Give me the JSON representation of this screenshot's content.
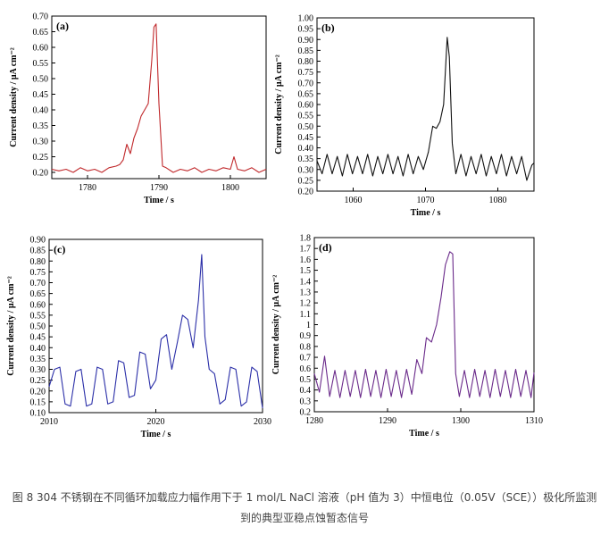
{
  "caption": "图 8 304 不锈钢在不同循环加载应力幅作用下于 1 mol/L NaCl 溶液（pH 值为 3）中恒电位（0.05V（SCE））极化所监测到的典型亚稳点蚀暂态信号",
  "chart_data": [
    {
      "type": "line",
      "panel_label": "(a)",
      "xlabel": "Time / s",
      "ylabel": "Current density / μA cm⁻²",
      "xlim": [
        1775,
        1805
      ],
      "ylim": [
        0.18,
        0.7
      ],
      "xticks": [
        1780,
        1790,
        1800
      ],
      "yticks": [
        0.2,
        0.25,
        0.3,
        0.35,
        0.4,
        0.45,
        0.5,
        0.55,
        0.6,
        0.65,
        0.7
      ],
      "ytick_labels": [
        "0.20",
        "0.25",
        "0.30",
        "0.35",
        "0.40",
        "0.45",
        "0.50",
        "0.55",
        "0.60",
        "0.65",
        "0.70"
      ],
      "color": "#c0282b",
      "grid": false,
      "series": [
        {
          "x": [
            1775,
            1776,
            1777,
            1778,
            1779,
            1780,
            1781,
            1782,
            1783,
            1784,
            1784.5,
            1785,
            1785.5,
            1786,
            1786.5,
            1787,
            1787.5,
            1788,
            1788.5,
            1789,
            1789.3,
            1789.6,
            1790,
            1790.5,
            1791,
            1792,
            1793,
            1794,
            1795,
            1796,
            1797,
            1798,
            1799,
            1800,
            1800.5,
            1801,
            1802,
            1803,
            1804,
            1805
          ],
          "y": [
            0.21,
            0.205,
            0.21,
            0.2,
            0.215,
            0.205,
            0.21,
            0.2,
            0.215,
            0.22,
            0.225,
            0.24,
            0.29,
            0.26,
            0.31,
            0.34,
            0.38,
            0.4,
            0.42,
            0.56,
            0.665,
            0.675,
            0.42,
            0.22,
            0.215,
            0.2,
            0.21,
            0.205,
            0.215,
            0.2,
            0.21,
            0.205,
            0.215,
            0.21,
            0.25,
            0.21,
            0.205,
            0.215,
            0.2,
            0.21
          ]
        }
      ]
    },
    {
      "type": "line",
      "panel_label": "(b)",
      "xlabel": "Time / s",
      "ylabel": "Current density / μA cm⁻²",
      "xlim": [
        1055,
        1085
      ],
      "ylim": [
        0.2,
        1.0
      ],
      "xticks": [
        1060,
        1070,
        1080
      ],
      "yticks": [
        0.2,
        0.25,
        0.3,
        0.35,
        0.4,
        0.45,
        0.5,
        0.55,
        0.6,
        0.65,
        0.7,
        0.75,
        0.8,
        0.85,
        0.9,
        0.95,
        1.0
      ],
      "ytick_labels": [
        "0.20",
        "0.25",
        "0.30",
        "0.35",
        "0.40",
        "0.45",
        "0.50",
        "0.55",
        "0.60",
        "0.65",
        "0.70",
        "0.75",
        "0.80",
        "0.85",
        "0.90",
        "0.95",
        "1.00"
      ],
      "color": "#111111",
      "grid": false,
      "series": [
        {
          "x": [
            1055,
            1055.7,
            1056.4,
            1057.1,
            1057.8,
            1058.5,
            1059.2,
            1059.9,
            1060.6,
            1061.3,
            1062,
            1062.7,
            1063.4,
            1064.1,
            1064.8,
            1065.5,
            1066.2,
            1066.9,
            1067.6,
            1068.3,
            1069,
            1069.7,
            1070.4,
            1071,
            1071.5,
            1072,
            1072.5,
            1073,
            1073.3,
            1073.7,
            1074.2,
            1074.9,
            1075.6,
            1076.3,
            1077,
            1077.7,
            1078.4,
            1079.1,
            1079.8,
            1080.5,
            1081.2,
            1081.9,
            1082.6,
            1083.3,
            1084,
            1084.7,
            1085
          ],
          "y": [
            0.34,
            0.28,
            0.37,
            0.28,
            0.36,
            0.27,
            0.37,
            0.28,
            0.36,
            0.28,
            0.37,
            0.27,
            0.36,
            0.28,
            0.37,
            0.28,
            0.36,
            0.27,
            0.37,
            0.28,
            0.36,
            0.3,
            0.38,
            0.5,
            0.49,
            0.52,
            0.6,
            0.91,
            0.82,
            0.42,
            0.28,
            0.37,
            0.27,
            0.36,
            0.28,
            0.37,
            0.27,
            0.36,
            0.28,
            0.37,
            0.27,
            0.36,
            0.28,
            0.36,
            0.25,
            0.32,
            0.33
          ]
        }
      ]
    },
    {
      "type": "line",
      "panel_label": "(c)",
      "xlabel": "Time / s",
      "ylabel": "Current density / μA cm⁻²",
      "xlim": [
        2010,
        2030
      ],
      "ylim": [
        0.1,
        0.9
      ],
      "xticks": [
        2010,
        2020,
        2030
      ],
      "yticks": [
        0.1,
        0.15,
        0.2,
        0.25,
        0.3,
        0.35,
        0.4,
        0.45,
        0.5,
        0.55,
        0.6,
        0.65,
        0.7,
        0.75,
        0.8,
        0.85,
        0.9
      ],
      "ytick_labels": [
        "0.10",
        "0.15",
        "0.20",
        "0.25",
        "0.30",
        "0.35",
        "0.40",
        "0.45",
        "0.50",
        "0.55",
        "0.60",
        "0.65",
        "0.70",
        "0.75",
        "0.80",
        "0.85",
        "0.90"
      ],
      "color": "#2b2fa8",
      "grid": false,
      "series": [
        {
          "x": [
            2010,
            2010.5,
            2011,
            2011.5,
            2012,
            2012.5,
            2013,
            2013.5,
            2014,
            2014.5,
            2015,
            2015.5,
            2016,
            2016.5,
            2017,
            2017.5,
            2018,
            2018.5,
            2019,
            2019.5,
            2020,
            2020.5,
            2021,
            2021.5,
            2022,
            2022.5,
            2023,
            2023.5,
            2024,
            2024.3,
            2024.6,
            2025,
            2025.5,
            2026,
            2026.5,
            2027,
            2027.5,
            2028,
            2028.5,
            2029,
            2029.5,
            2030
          ],
          "y": [
            0.22,
            0.3,
            0.31,
            0.14,
            0.13,
            0.29,
            0.3,
            0.13,
            0.14,
            0.31,
            0.3,
            0.14,
            0.15,
            0.34,
            0.33,
            0.17,
            0.18,
            0.38,
            0.37,
            0.21,
            0.25,
            0.44,
            0.46,
            0.3,
            0.42,
            0.55,
            0.53,
            0.4,
            0.62,
            0.83,
            0.45,
            0.3,
            0.28,
            0.14,
            0.16,
            0.31,
            0.3,
            0.13,
            0.15,
            0.31,
            0.29,
            0.12
          ]
        }
      ]
    },
    {
      "type": "line",
      "panel_label": "(d)",
      "xlabel": "Time / s",
      "ylabel": "Current density / μA cm⁻²",
      "xlim": [
        1280,
        1310
      ],
      "ylim": [
        0.2,
        1.8
      ],
      "xticks": [
        1280,
        1290,
        1300,
        1310
      ],
      "yticks": [
        0.2,
        0.3,
        0.4,
        0.5,
        0.6,
        0.7,
        0.8,
        0.9,
        1.0,
        1.1,
        1.2,
        1.3,
        1.4,
        1.5,
        1.6,
        1.7,
        1.8
      ],
      "ytick_labels": [
        "0.2",
        "0.3",
        "0.4",
        "0.5",
        "0.6",
        "0.7",
        "0.8",
        "0.9",
        "1",
        "1.1",
        "1.2",
        "1.3",
        "1.4",
        "1.5",
        "1.6",
        "1.7",
        "1.8"
      ],
      "color": "#6a2a8a",
      "grid": false,
      "series": [
        {
          "x": [
            1280,
            1280.7,
            1281.4,
            1282.1,
            1282.8,
            1283.5,
            1284.2,
            1284.9,
            1285.6,
            1286.3,
            1287,
            1287.7,
            1288.4,
            1289.1,
            1289.8,
            1290.5,
            1291.2,
            1291.9,
            1292.6,
            1293.3,
            1294,
            1294.7,
            1295.3,
            1296,
            1296.7,
            1297.3,
            1297.9,
            1298.5,
            1298.9,
            1299.3,
            1299.8,
            1300.5,
            1301.2,
            1301.9,
            1302.6,
            1303.3,
            1304,
            1304.7,
            1305.4,
            1306.1,
            1306.8,
            1307.5,
            1308.2,
            1308.9,
            1309.6,
            1310
          ],
          "y": [
            0.55,
            0.38,
            0.71,
            0.34,
            0.58,
            0.33,
            0.58,
            0.34,
            0.58,
            0.33,
            0.59,
            0.34,
            0.58,
            0.33,
            0.59,
            0.34,
            0.58,
            0.33,
            0.59,
            0.36,
            0.68,
            0.55,
            0.88,
            0.84,
            1.0,
            1.25,
            1.55,
            1.67,
            1.65,
            0.55,
            0.34,
            0.58,
            0.33,
            0.59,
            0.34,
            0.58,
            0.33,
            0.59,
            0.34,
            0.58,
            0.33,
            0.59,
            0.34,
            0.58,
            0.33,
            0.56
          ]
        }
      ]
    }
  ]
}
